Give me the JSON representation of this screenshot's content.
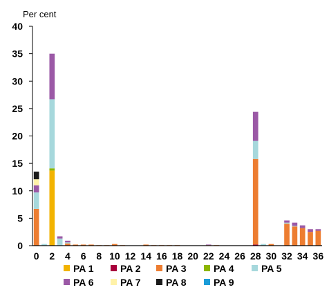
{
  "chart_data": {
    "type": "bar",
    "stacked": true,
    "ylabel": "Per cent",
    "xlabel": "",
    "ylim": [
      0,
      40
    ],
    "yticks": [
      0,
      5,
      10,
      15,
      20,
      25,
      30,
      35,
      40
    ],
    "x": [
      0,
      1,
      2,
      3,
      4,
      5,
      6,
      7,
      8,
      9,
      10,
      11,
      12,
      13,
      14,
      15,
      16,
      17,
      18,
      19,
      20,
      21,
      22,
      23,
      24,
      25,
      26,
      27,
      28,
      29,
      30,
      31,
      32,
      33,
      34,
      35,
      36
    ],
    "xticks": [
      0,
      2,
      4,
      6,
      8,
      10,
      12,
      14,
      16,
      18,
      20,
      22,
      24,
      26,
      28,
      30,
      32,
      34,
      36
    ],
    "grid": false,
    "legend_position": "bottom",
    "series": [
      {
        "name": "PA 1",
        "color": "#f2b300",
        "values": [
          0,
          0,
          13.7,
          0,
          0,
          0,
          0,
          0,
          0,
          0,
          0,
          0,
          0,
          0,
          0,
          0,
          0,
          0,
          0,
          0,
          0,
          0,
          0,
          0,
          0,
          0,
          0,
          0,
          0,
          0,
          0,
          0,
          0,
          0,
          0,
          0,
          0
        ]
      },
      {
        "name": "PA 2",
        "color": "#a8003b",
        "values": [
          0,
          0,
          0,
          0,
          0,
          0,
          0,
          0,
          0,
          0,
          0,
          0,
          0,
          0,
          0,
          0,
          0,
          0,
          0,
          0,
          0,
          0,
          0,
          0,
          0,
          0,
          0,
          0,
          0.2,
          0,
          0,
          0,
          0,
          0,
          0,
          0,
          0
        ]
      },
      {
        "name": "PA 3",
        "color": "#ed7d31",
        "values": [
          6.7,
          0,
          0,
          0,
          0.4,
          0.2,
          0.2,
          0.2,
          0.1,
          0.1,
          0.3,
          0.1,
          0,
          0,
          0.2,
          0.1,
          0.1,
          0.1,
          0.1,
          0,
          0,
          0,
          0.1,
          0.1,
          0,
          0,
          0,
          0,
          15.6,
          0,
          0.3,
          0,
          4.0,
          3.5,
          3.2,
          2.5,
          2.7
        ]
      },
      {
        "name": "PA 4",
        "color": "#8db600",
        "values": [
          0,
          0,
          0.4,
          0,
          0,
          0,
          0,
          0,
          0,
          0,
          0,
          0,
          0,
          0,
          0,
          0,
          0,
          0,
          0,
          0,
          0,
          0,
          0,
          0,
          0,
          0,
          0,
          0,
          0,
          0,
          0,
          0,
          0,
          0,
          0,
          0,
          0
        ]
      },
      {
        "name": "PA 5",
        "color": "#a6d8dc",
        "values": [
          3.0,
          0.3,
          12.6,
          1.3,
          0.2,
          0,
          0,
          0,
          0,
          0,
          0,
          0,
          0,
          0,
          0,
          0,
          0,
          0,
          0,
          0,
          0,
          0,
          0,
          0,
          0,
          0,
          0,
          0,
          3.3,
          0.3,
          0,
          0,
          0.2,
          0.1,
          0,
          0,
          0
        ]
      },
      {
        "name": "PA 6",
        "color": "#9b59a6",
        "values": [
          1.3,
          0,
          8.3,
          0.4,
          0.3,
          0,
          0,
          0,
          0,
          0,
          0,
          0,
          0,
          0,
          0,
          0,
          0,
          0,
          0,
          0,
          0,
          0,
          0.1,
          0,
          0,
          0,
          0,
          0,
          5.3,
          0,
          0,
          0,
          0.4,
          0.6,
          0.5,
          0.5,
          0.3
        ]
      },
      {
        "name": "PA 7",
        "color": "#fff2a8",
        "values": [
          1.1,
          0,
          0,
          0,
          0,
          0,
          0,
          0,
          0,
          0,
          0,
          0,
          0,
          0,
          0,
          0,
          0,
          0,
          0,
          0,
          0,
          0,
          0,
          0,
          0,
          0,
          0,
          0,
          0,
          0,
          0,
          0,
          0,
          0,
          0,
          0,
          0
        ]
      },
      {
        "name": "PA 8",
        "color": "#1a1a1a",
        "values": [
          1.4,
          0,
          0,
          0,
          0,
          0,
          0,
          0,
          0,
          0,
          0,
          0,
          0,
          0,
          0,
          0,
          0,
          0,
          0,
          0,
          0,
          0,
          0,
          0,
          0,
          0,
          0,
          0,
          0,
          0,
          0,
          0,
          0,
          0,
          0,
          0,
          0
        ]
      },
      {
        "name": "PA 9",
        "color": "#1a9cd8",
        "values": [
          0,
          0,
          0,
          0,
          0,
          0,
          0,
          0,
          0,
          0,
          0,
          0,
          0,
          0,
          0,
          0,
          0,
          0,
          0,
          0,
          0,
          0,
          0,
          0,
          0,
          0,
          0,
          0,
          0,
          0,
          0,
          0,
          0,
          0,
          0,
          0,
          0
        ]
      }
    ]
  }
}
